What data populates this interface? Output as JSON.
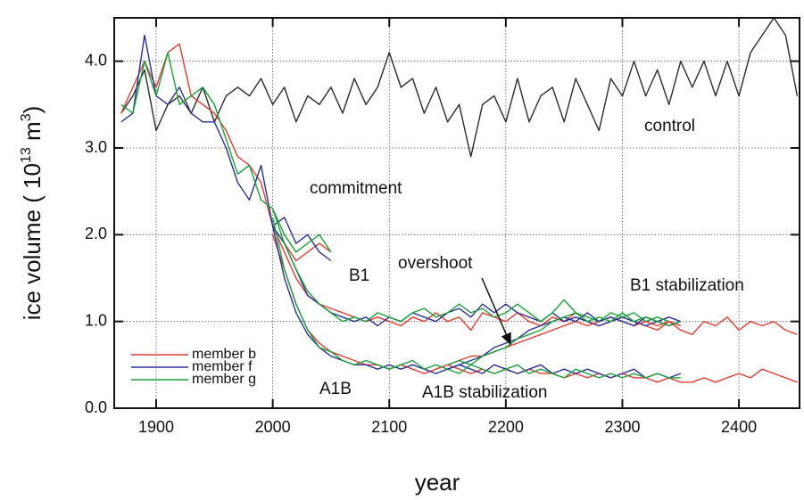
{
  "chart_data": {
    "type": "line",
    "xlabel": "year",
    "ylabel": [
      "ice volume ( 10",
      "13",
      " m",
      "3",
      ")"
    ],
    "xlim": [
      1864,
      2452
    ],
    "ylim": [
      0,
      4.5
    ],
    "xticks": [
      1900,
      2000,
      2100,
      2200,
      2300,
      2400
    ],
    "yticks": [
      {
        "value": 0,
        "label": "0.0"
      },
      {
        "value": 1,
        "label": "1.0"
      },
      {
        "value": 2,
        "label": "2.0"
      },
      {
        "value": 3,
        "label": "3.0"
      },
      {
        "value": 4,
        "label": "4.0"
      }
    ],
    "grid": true,
    "legend_loc": "lower left",
    "annotations": [
      "control",
      "commitment",
      "B1",
      "overshoot",
      "B1 stabilization",
      "A1B",
      "A1B stabilization"
    ],
    "series": [
      {
        "color": "#2b2b2b",
        "x": [
          1870,
          1880,
          1890,
          1900,
          1910,
          1920,
          1930,
          1940,
          1950,
          1960,
          1970,
          1980,
          1990,
          2000,
          2010,
          2020,
          2030,
          2040,
          2050,
          2060,
          2070,
          2080,
          2090,
          2100,
          2110,
          2120,
          2130,
          2140,
          2150,
          2160,
          2170,
          2180,
          2190,
          2200,
          2210,
          2220,
          2230,
          2240,
          2250,
          2260,
          2270,
          2280,
          2290,
          2300,
          2310,
          2320,
          2330,
          2340,
          2350,
          2360,
          2370,
          2380,
          2390,
          2400,
          2410,
          2420,
          2430,
          2440,
          2450
        ],
        "values": [
          3.4,
          3.6,
          3.9,
          3.2,
          3.5,
          3.6,
          3.4,
          3.7,
          3.3,
          3.6,
          3.7,
          3.6,
          3.8,
          3.5,
          3.7,
          3.3,
          3.6,
          3.5,
          3.7,
          3.4,
          3.8,
          3.5,
          3.7,
          4.1,
          3.7,
          3.8,
          3.4,
          3.7,
          3.3,
          3.5,
          2.9,
          3.5,
          3.6,
          3.3,
          3.8,
          3.3,
          3.6,
          3.7,
          3.3,
          3.8,
          3.5,
          3.2,
          3.8,
          3.6,
          4.0,
          3.6,
          3.9,
          3.5,
          4.0,
          3.7,
          4.0,
          3.6,
          4.0,
          3.6,
          4.1,
          4.3,
          4.5,
          4.3,
          3.6
        ]
      },
      {
        "name": "member b",
        "color": "#e53a32",
        "x": [
          1870,
          1880,
          1890,
          1900,
          1910,
          1920,
          1930,
          1940,
          1950,
          1960,
          1970,
          1980,
          1990,
          2000
        ],
        "values": [
          3.4,
          3.7,
          4.0,
          3.7,
          4.1,
          4.2,
          3.6,
          3.5,
          3.4,
          3.2,
          2.9,
          2.8,
          2.6,
          2.1
        ]
      },
      {
        "name": "member f",
        "color": "#2a3196",
        "x": [
          1870,
          1880,
          1890,
          1900,
          1910,
          1920,
          1930,
          1940,
          1950,
          1960,
          1970,
          1980,
          1990,
          2000
        ],
        "values": [
          3.3,
          3.4,
          4.3,
          3.6,
          3.5,
          3.7,
          3.4,
          3.3,
          3.3,
          3.0,
          2.6,
          2.4,
          2.8,
          2.1
        ]
      },
      {
        "name": "member g",
        "color": "#19a23c",
        "x": [
          1870,
          1880,
          1890,
          1900,
          1910,
          1920,
          1930,
          1940,
          1950,
          1960,
          1970,
          1980,
          1990,
          2000
        ],
        "values": [
          3.5,
          3.4,
          4.0,
          3.6,
          4.1,
          3.5,
          3.6,
          3.7,
          3.5,
          3.1,
          2.7,
          2.8,
          2.4,
          2.3
        ]
      },
      {
        "color": "#e53a32",
        "x": [
          2000,
          2010,
          2020,
          2030,
          2040,
          2050
        ],
        "values": [
          2.1,
          1.9,
          1.7,
          1.8,
          1.9,
          1.8
        ]
      },
      {
        "color": "#2a3196",
        "x": [
          2000,
          2010,
          2020,
          2030,
          2040,
          2050
        ],
        "values": [
          2.1,
          2.2,
          1.9,
          2.0,
          1.8,
          1.7
        ]
      },
      {
        "color": "#19a23c",
        "x": [
          2000,
          2010,
          2020,
          2030,
          2040,
          2050
        ],
        "values": [
          2.3,
          2.0,
          1.8,
          1.9,
          2.0,
          1.8
        ]
      },
      {
        "color": "#e53a32",
        "x": [
          2000,
          2010,
          2020,
          2030,
          2040,
          2050,
          2060,
          2070,
          2080,
          2090,
          2100,
          2110,
          2120,
          2130,
          2140,
          2150,
          2160,
          2170,
          2180,
          2190,
          2200,
          2210,
          2220,
          2230,
          2240,
          2250,
          2260,
          2270,
          2280,
          2290,
          2300,
          2310,
          2320,
          2330,
          2340,
          2350,
          2360,
          2370,
          2380,
          2390,
          2400,
          2410,
          2420,
          2430,
          2440,
          2450
        ],
        "values": [
          2.1,
          1.8,
          1.5,
          1.3,
          1.2,
          1.15,
          1.1,
          1.05,
          1.0,
          1.05,
          1.0,
          0.95,
          1.05,
          1.0,
          1.1,
          1.0,
          1.05,
          0.9,
          1.1,
          1.05,
          1.0,
          1.1,
          1.0,
          0.95,
          1.05,
          1.0,
          1.1,
          1.0,
          0.95,
          1.0,
          1.05,
          1.0,
          0.95,
          0.9,
          1.0,
          0.9,
          0.85,
          1.0,
          0.95,
          1.05,
          0.9,
          1.0,
          0.95,
          1.0,
          0.9,
          0.85
        ]
      },
      {
        "color": "#2a3196",
        "x": [
          2000,
          2010,
          2020,
          2030,
          2040,
          2050,
          2060,
          2070,
          2080,
          2090,
          2100,
          2110,
          2120,
          2130,
          2140,
          2150,
          2160,
          2170,
          2180,
          2190,
          2200,
          2210,
          2220,
          2230,
          2240,
          2250,
          2260,
          2270,
          2280,
          2290,
          2300,
          2310,
          2320,
          2330,
          2340,
          2350
        ],
        "values": [
          2.1,
          1.9,
          1.6,
          1.3,
          1.2,
          1.1,
          1.05,
          1.0,
          1.05,
          0.95,
          1.05,
          1.0,
          1.1,
          1.05,
          1.0,
          1.1,
          1.15,
          1.05,
          1.2,
          1.1,
          1.2,
          1.1,
          1.05,
          1.0,
          1.1,
          1.0,
          1.05,
          1.0,
          0.95,
          1.0,
          1.05,
          1.0,
          0.95,
          1.0,
          1.05,
          1.0
        ]
      },
      {
        "color": "#19a23c",
        "x": [
          2000,
          2010,
          2020,
          2030,
          2040,
          2050,
          2060,
          2070,
          2080,
          2090,
          2100,
          2110,
          2120,
          2130,
          2140,
          2150,
          2160,
          2170,
          2180,
          2190,
          2200,
          2210,
          2220,
          2230,
          2240,
          2250,
          2260,
          2270,
          2280,
          2290,
          2300,
          2310,
          2320,
          2330,
          2340,
          2350
        ],
        "values": [
          2.3,
          1.9,
          1.6,
          1.35,
          1.2,
          1.1,
          1.0,
          1.05,
          1.0,
          1.1,
          1.05,
          1.0,
          1.1,
          1.15,
          1.05,
          1.1,
          1.2,
          1.1,
          1.15,
          1.05,
          1.1,
          1.2,
          1.1,
          1.0,
          1.1,
          1.25,
          1.1,
          1.05,
          1.0,
          1.1,
          1.05,
          1.1,
          1.0,
          1.05,
          1.0,
          0.95
        ]
      },
      {
        "color": "#e53a32",
        "x": [
          2000,
          2010,
          2020,
          2030,
          2040,
          2050,
          2060,
          2070,
          2080,
          2090,
          2100,
          2110,
          2120,
          2130,
          2140,
          2150,
          2160,
          2170,
          2180,
          2190,
          2200,
          2210,
          2220,
          2230,
          2240,
          2250,
          2260,
          2270,
          2280,
          2290,
          2300,
          2310,
          2320,
          2330,
          2340,
          2350,
          2360,
          2370,
          2380,
          2390,
          2400,
          2410,
          2420,
          2430,
          2440,
          2450
        ],
        "values": [
          2.0,
          1.6,
          1.2,
          0.9,
          0.75,
          0.65,
          0.6,
          0.55,
          0.5,
          0.5,
          0.45,
          0.5,
          0.45,
          0.4,
          0.45,
          0.5,
          0.45,
          0.4,
          0.45,
          0.4,
          0.45,
          0.4,
          0.45,
          0.4,
          0.4,
          0.35,
          0.4,
          0.35,
          0.4,
          0.35,
          0.4,
          0.35,
          0.35,
          0.3,
          0.35,
          0.3,
          0.3,
          0.35,
          0.3,
          0.35,
          0.4,
          0.35,
          0.45,
          0.4,
          0.35,
          0.3
        ]
      },
      {
        "color": "#2a3196",
        "x": [
          2000,
          2010,
          2020,
          2030,
          2040,
          2050,
          2060,
          2070,
          2080,
          2090,
          2100,
          2110,
          2120,
          2130,
          2140,
          2150,
          2160,
          2170,
          2180,
          2190,
          2200,
          2210,
          2220,
          2230,
          2240,
          2250,
          2260,
          2270,
          2280,
          2290,
          2300,
          2310,
          2320,
          2330,
          2340,
          2350
        ],
        "values": [
          2.1,
          1.5,
          1.1,
          0.85,
          0.7,
          0.6,
          0.55,
          0.5,
          0.5,
          0.45,
          0.5,
          0.45,
          0.5,
          0.45,
          0.4,
          0.45,
          0.5,
          0.45,
          0.4,
          0.5,
          0.45,
          0.4,
          0.45,
          0.5,
          0.4,
          0.45,
          0.4,
          0.45,
          0.4,
          0.35,
          0.4,
          0.45,
          0.35,
          0.4,
          0.35,
          0.4
        ]
      },
      {
        "color": "#19a23c",
        "x": [
          2000,
          2010,
          2020,
          2030,
          2040,
          2050,
          2060,
          2070,
          2080,
          2090,
          2100,
          2110,
          2120,
          2130,
          2140,
          2150,
          2160,
          2170,
          2180,
          2190,
          2200,
          2210,
          2220,
          2230,
          2240,
          2250,
          2260,
          2270,
          2280,
          2290,
          2300,
          2310,
          2320,
          2330,
          2340,
          2350
        ],
        "values": [
          2.2,
          1.6,
          1.2,
          0.9,
          0.7,
          0.65,
          0.55,
          0.5,
          0.55,
          0.5,
          0.45,
          0.5,
          0.55,
          0.45,
          0.5,
          0.45,
          0.4,
          0.5,
          0.45,
          0.4,
          0.45,
          0.5,
          0.4,
          0.45,
          0.4,
          0.35,
          0.45,
          0.4,
          0.35,
          0.4,
          0.35,
          0.4,
          0.35,
          0.4,
          0.35,
          0.35
        ]
      },
      {
        "color": "#e53a32",
        "x": [
          2150,
          2160,
          2170,
          2180,
          2190,
          2200,
          2210,
          2220,
          2230,
          2240,
          2250,
          2260,
          2270,
          2280,
          2290,
          2300,
          2310,
          2320,
          2330,
          2340,
          2350
        ],
        "values": [
          0.5,
          0.55,
          0.6,
          0.6,
          0.65,
          0.7,
          0.75,
          0.8,
          0.85,
          0.9,
          0.95,
          1.0,
          0.95,
          1.0,
          1.05,
          1.0,
          0.95,
          1.0,
          0.95,
          1.0,
          0.95
        ]
      },
      {
        "color": "#2a3196",
        "x": [
          2150,
          2160,
          2170,
          2180,
          2190,
          2200,
          2210,
          2220,
          2230,
          2240,
          2250,
          2260,
          2270,
          2280,
          2290,
          2300,
          2310,
          2320,
          2330,
          2340,
          2350
        ],
        "values": [
          0.45,
          0.5,
          0.55,
          0.6,
          0.7,
          0.75,
          0.8,
          0.9,
          0.95,
          1.0,
          1.05,
          1.0,
          1.1,
          1.0,
          1.05,
          1.0,
          0.95,
          1.05,
          1.0,
          0.95,
          1.0
        ]
      },
      {
        "color": "#19a23c",
        "x": [
          2150,
          2160,
          2170,
          2180,
          2190,
          2200,
          2210,
          2220,
          2230,
          2240,
          2250,
          2260,
          2270,
          2280,
          2290,
          2300,
          2310,
          2320,
          2330,
          2340,
          2350
        ],
        "values": [
          0.5,
          0.55,
          0.5,
          0.6,
          0.65,
          0.7,
          0.8,
          0.85,
          0.9,
          1.0,
          1.05,
          1.1,
          1.0,
          1.05,
          1.0,
          1.1,
          1.0,
          1.05,
          1.0,
          0.95,
          1.0
        ]
      }
    ]
  }
}
